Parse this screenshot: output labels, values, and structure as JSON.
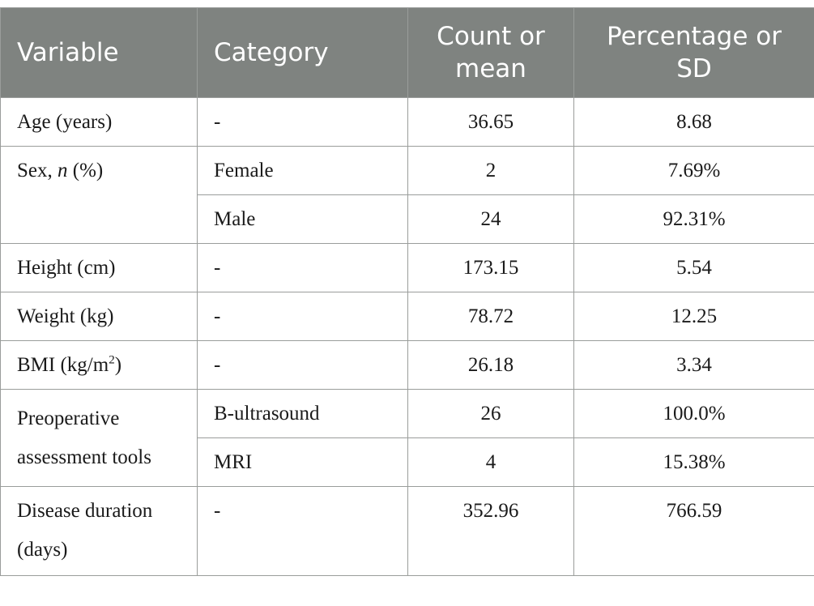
{
  "headers": [
    "Variable",
    "Category",
    "Count or mean",
    "Percentage or SD"
  ],
  "rows": {
    "age": {
      "variable": "Age (years)",
      "category": "-",
      "count": "36.65",
      "pct": "8.68"
    },
    "sex": {
      "variable_prefix": "Sex, ",
      "variable_italic": "n",
      "variable_suffix": " (%)"
    },
    "sex_female": {
      "category": "Female",
      "count": "2",
      "pct": "7.69%"
    },
    "sex_male": {
      "category": "Male",
      "count": "24",
      "pct": "92.31%"
    },
    "height": {
      "variable": "Height (cm)",
      "category": "-",
      "count": "173.15",
      "pct": "5.54"
    },
    "weight": {
      "variable": "Weight (kg)",
      "category": "-",
      "count": "78.72",
      "pct": "12.25"
    },
    "bmi": {
      "variable_prefix": "BMI (kg/m",
      "variable_sup": "2",
      "variable_suffix": ")",
      "category": "-",
      "count": "26.18",
      "pct": "3.34"
    },
    "preop": {
      "variable": "Preoperative assessment tools"
    },
    "preop_bus": {
      "category": "B-ultrasound",
      "count": "26",
      "pct": "100.0%"
    },
    "preop_mri": {
      "category": "MRI",
      "count": "4",
      "pct": "15.38%"
    },
    "duration": {
      "variable": "Disease duration (days)",
      "category": "-",
      "count": "352.96",
      "pct": "766.59"
    }
  }
}
